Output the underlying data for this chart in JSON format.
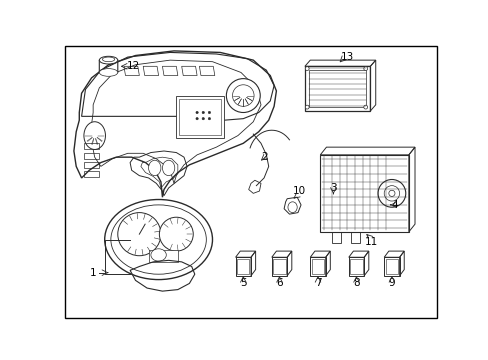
{
  "background_color": "#ffffff",
  "line_color": "#2a2a2a",
  "label_color": "#000000",
  "figsize": [
    4.89,
    3.6
  ],
  "dpi": 100,
  "border": [
    0.01,
    0.01,
    0.98,
    0.98
  ]
}
